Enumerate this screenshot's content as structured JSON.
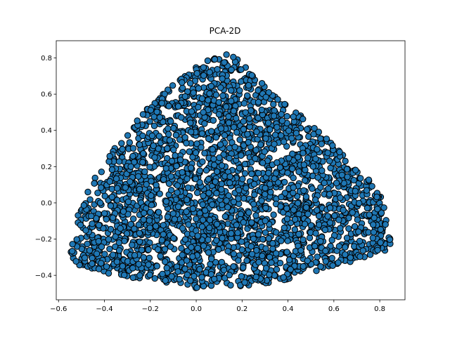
{
  "chart_data": {
    "type": "scatter",
    "title": "PCA-2D",
    "xlabel": "",
    "ylabel": "",
    "xlim": [
      -0.61,
      0.91
    ],
    "ylim": [
      -0.535,
      0.895
    ],
    "xticks": [
      -0.6,
      -0.4,
      -0.2,
      0.0,
      0.2,
      0.4,
      0.6,
      0.8
    ],
    "xtick_labels": [
      "−0.6",
      "−0.4",
      "−0.2",
      "0.0",
      "0.2",
      "0.4",
      "0.6",
      "0.8"
    ],
    "yticks": [
      -0.4,
      -0.2,
      0.0,
      0.2,
      0.4,
      0.6,
      0.8
    ],
    "ytick_labels": [
      "−0.4",
      "−0.2",
      "0.0",
      "0.2",
      "0.4",
      "0.6",
      "0.8"
    ],
    "grid": false,
    "legend": "none",
    "marker_color": "#1f77b4",
    "marker_edge_color": "#000000",
    "region_outline": [
      [
        -0.555,
        -0.31
      ],
      [
        -0.52,
        -0.06
      ],
      [
        -0.44,
        0.14
      ],
      [
        -0.34,
        0.33
      ],
      [
        -0.22,
        0.51
      ],
      [
        -0.12,
        0.63
      ],
      [
        0.0,
        0.76
      ],
      [
        0.12,
        0.82
      ],
      [
        0.16,
        0.83
      ],
      [
        0.26,
        0.69
      ],
      [
        0.34,
        0.6
      ],
      [
        0.44,
        0.5
      ],
      [
        0.58,
        0.34
      ],
      [
        0.7,
        0.2
      ],
      [
        0.8,
        0.06
      ],
      [
        0.85,
        -0.17
      ],
      [
        0.86,
        -0.27
      ],
      [
        0.7,
        -0.32
      ],
      [
        0.52,
        -0.38
      ],
      [
        0.38,
        -0.43
      ],
      [
        0.2,
        -0.46
      ],
      [
        0.0,
        -0.47
      ],
      [
        -0.2,
        -0.43
      ],
      [
        -0.4,
        -0.39
      ],
      [
        -0.55,
        -0.33
      ]
    ]
  }
}
